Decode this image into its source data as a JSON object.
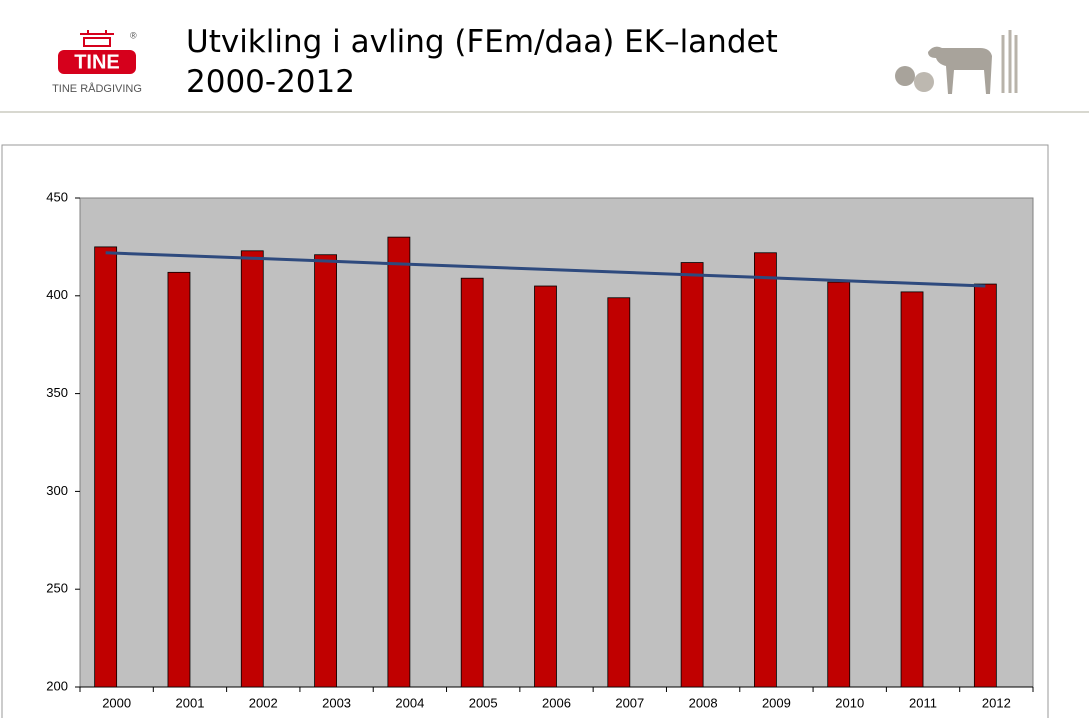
{
  "logo": {
    "brand": "TINE",
    "mark": "®",
    "subtitle": "TINE RÅDGIVING"
  },
  "chart_data": {
    "type": "bar",
    "title": "Utvikling i avling (FEm/daa) EK–landet 2000-2012",
    "categories": [
      "2000",
      "2001",
      "2002",
      "2003",
      "2004",
      "2005",
      "2006",
      "2007",
      "2008",
      "2009",
      "2010",
      "2011",
      "2012"
    ],
    "series": [
      {
        "type": "bar",
        "color": "#c00000",
        "values": [
          425,
          412,
          423,
          421,
          430,
          409,
          405,
          399,
          417,
          422,
          407,
          402,
          406
        ]
      },
      {
        "type": "line",
        "color": "#2e4a7e",
        "values": [
          422,
          420.6,
          419.2,
          417.8,
          416.3,
          414.9,
          413.5,
          412.1,
          410.7,
          409.3,
          407.8,
          406.4,
          405
        ]
      }
    ],
    "ylim": [
      200,
      450
    ],
    "yticks": [
      200,
      250,
      300,
      350,
      400,
      450
    ],
    "plot_background": "#c0c0c0"
  }
}
